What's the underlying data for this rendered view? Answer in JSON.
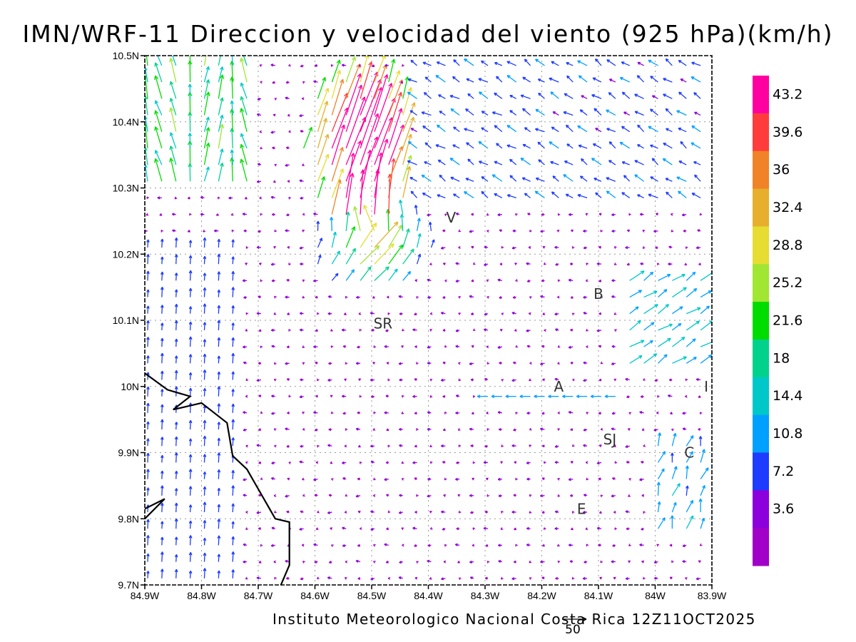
{
  "title": "IMN/WRF-11 Direccion y velocidad del viento (925 hPa)(km/h)",
  "credit": "Instituto Meteorologico Nacional Costa Rica 12Z11OCT2025",
  "axes": {
    "lon_ticks": [
      "84.9W",
      "84.8W",
      "84.7W",
      "84.6W",
      "84.5W",
      "84.4W",
      "84.3W",
      "84.2W",
      "84.1W",
      "84W",
      "83.9W"
    ],
    "lat_ticks": [
      "10.5N",
      "10.4N",
      "10.3N",
      "10.2N",
      "10.1N",
      "10N",
      "9.9N",
      "9.8N",
      "9.7N"
    ]
  },
  "places": [
    {
      "label": "V",
      "lon": -84.36,
      "lat": 10.255
    },
    {
      "label": "B",
      "lon": -84.1,
      "lat": 10.14
    },
    {
      "label": "SR",
      "lon": -84.48,
      "lat": 10.095
    },
    {
      "label": "A",
      "lon": -84.17,
      "lat": 10.0
    },
    {
      "label": "I",
      "lon": -83.91,
      "lat": 10.0
    },
    {
      "label": "SJ",
      "lon": -84.08,
      "lat": 9.92
    },
    {
      "label": "C",
      "lon": -83.94,
      "lat": 9.9
    },
    {
      "label": "E",
      "lon": -84.13,
      "lat": 9.815
    }
  ],
  "colorbar": {
    "labels": [
      "43.2",
      "39.6",
      "36",
      "32.4",
      "28.8",
      "25.2",
      "21.6",
      "18",
      "14.4",
      "10.8",
      "7.2",
      "3.6"
    ],
    "colors": [
      "#ff00a0",
      "#ff3c3c",
      "#f08228",
      "#e6af2d",
      "#e6dc32",
      "#a0e632",
      "#00dc00",
      "#00d28c",
      "#00c8c8",
      "#00a0ff",
      "#1e3cff",
      "#8c00dc",
      "#a000c8"
    ]
  },
  "reference_vector": {
    "value": "50",
    "unit": "km/h"
  },
  "coastline": [
    [
      -84.9,
      10.02
    ],
    [
      -84.86,
      9.995
    ],
    [
      -84.82,
      9.985
    ],
    [
      -84.85,
      9.965
    ],
    [
      -84.8,
      9.975
    ],
    [
      -84.755,
      9.945
    ],
    [
      -84.745,
      9.895
    ],
    [
      -84.72,
      9.875
    ],
    [
      -84.7,
      9.845
    ],
    [
      -84.67,
      9.8
    ],
    [
      -84.645,
      9.795
    ],
    [
      -84.645,
      9.73
    ],
    [
      -84.66,
      9.7
    ]
  ],
  "coastline_inlet": [
    [
      -84.9,
      9.815
    ],
    [
      -84.865,
      9.83
    ],
    [
      -84.9,
      9.8
    ]
  ],
  "wind_field": {
    "grid": "84.9W–83.9W, 9.7N–10.5N, ~0.025° spacing",
    "regions": [
      {
        "name": "northwest_strong",
        "center": [
          -84.52,
          10.35
        ],
        "max_speed": 43,
        "direction": "SSW-to-NNE (northward/northeastward)"
      },
      {
        "name": "northwest_corner",
        "center": [
          -84.85,
          10.4
        ],
        "speed": 28,
        "direction": "northward"
      },
      {
        "name": "northeast_plateau",
        "speed": 10,
        "direction": "northwestward"
      },
      {
        "name": "west_coast",
        "speed": 10,
        "direction": "northward"
      },
      {
        "name": "central_valley",
        "speed": 4,
        "direction": "variable/westward"
      },
      {
        "name": "east_side",
        "speed": 18,
        "direction": "northeastward"
      },
      {
        "name": "center_easterly",
        "center": [
          -84.2,
          9.98
        ],
        "speed": 12,
        "direction": "westward"
      }
    ]
  }
}
